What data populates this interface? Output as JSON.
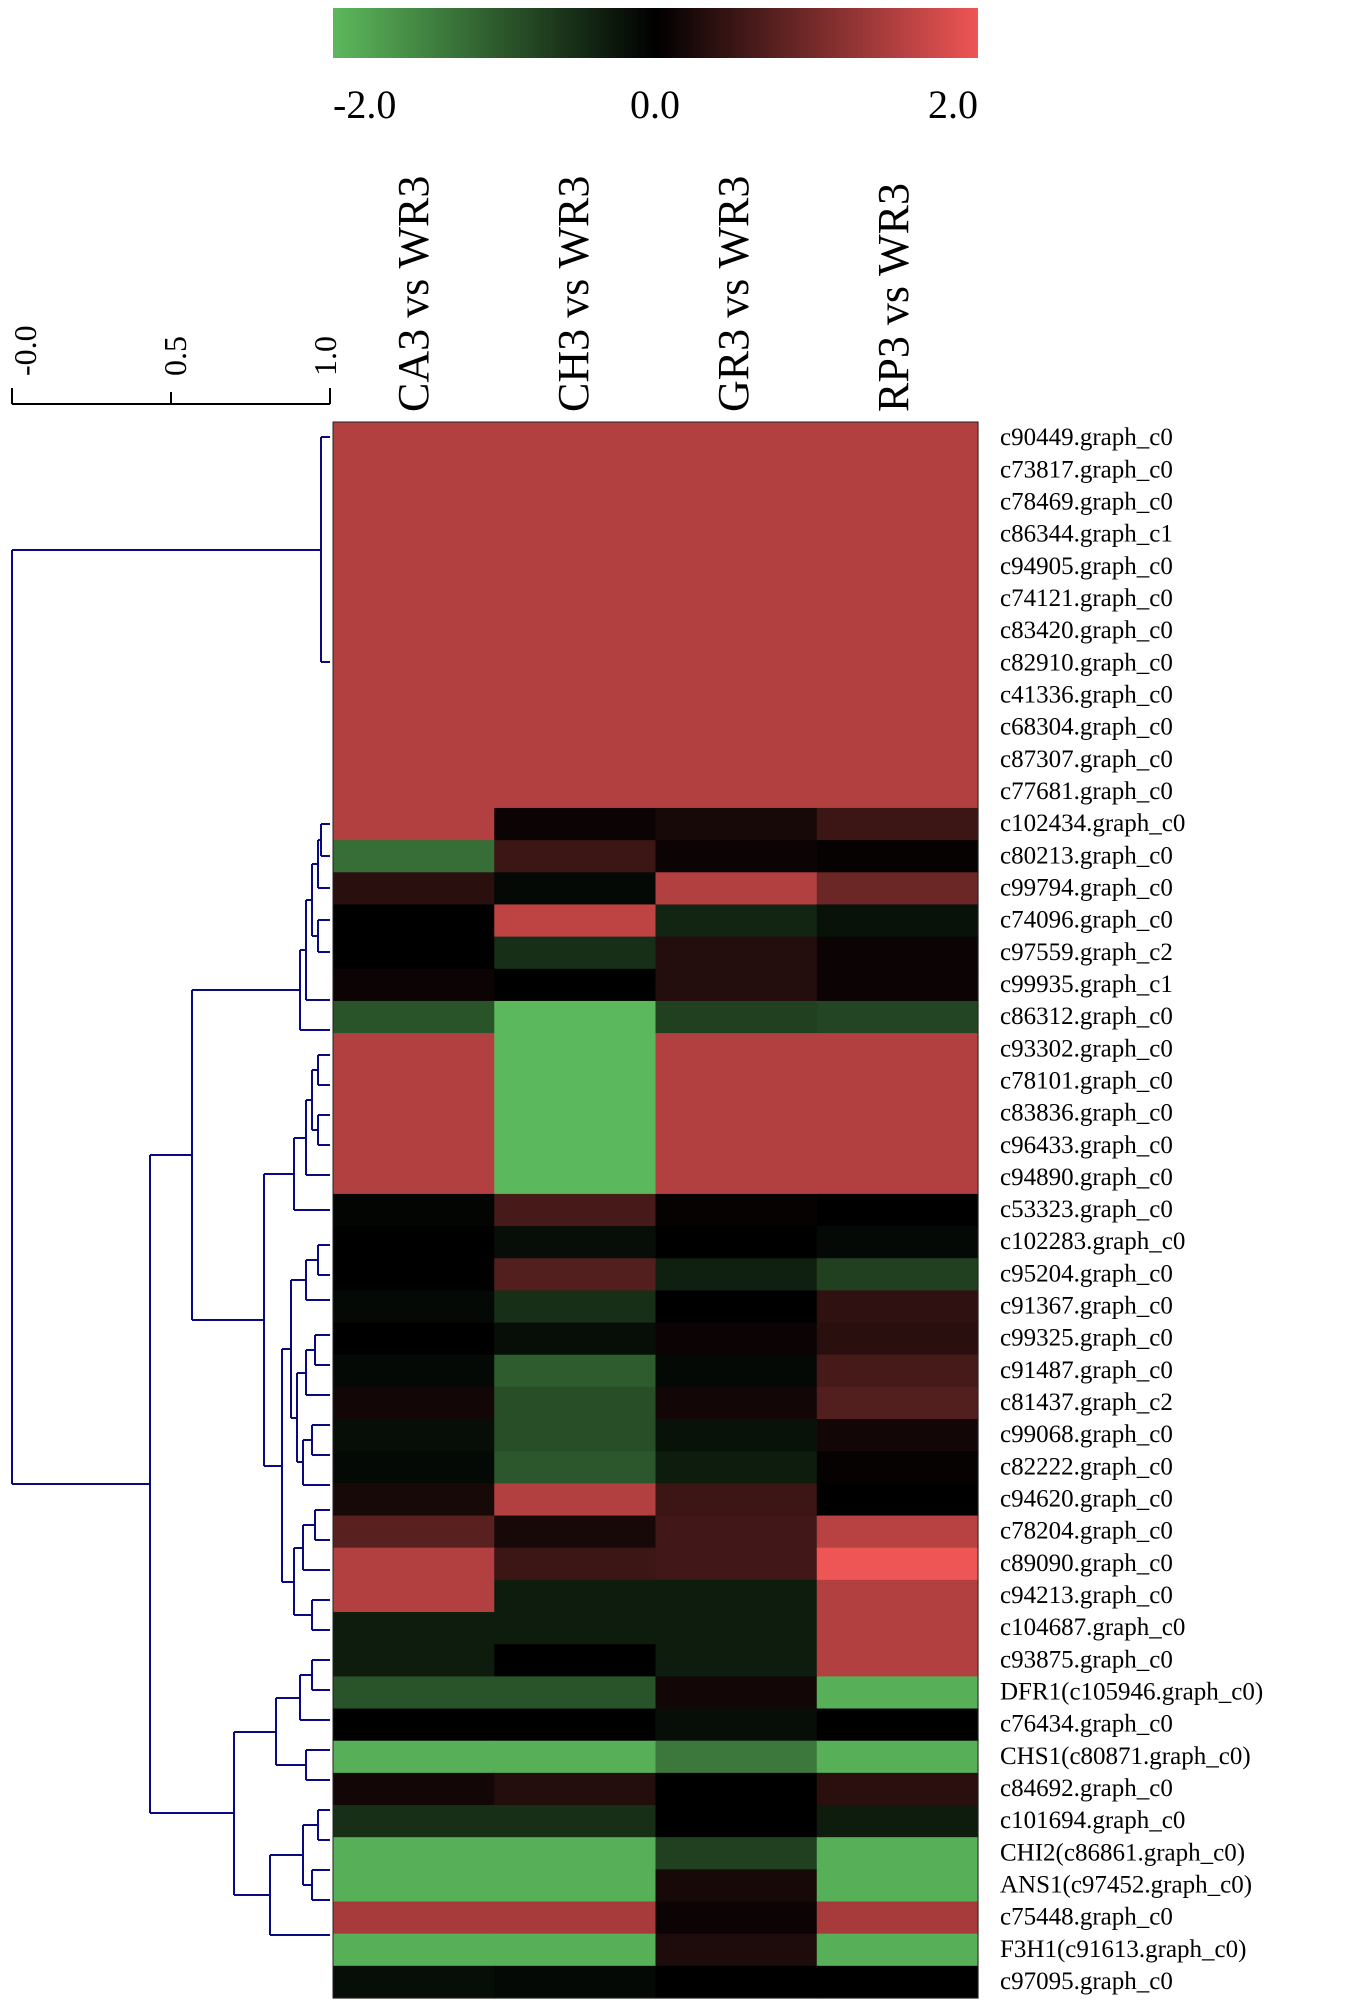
{
  "chart_data": {
    "type": "heatmap",
    "color_scale": {
      "min": -2.0,
      "mid": 0.0,
      "max": 2.0,
      "tick_labels": [
        "-2.0",
        "0.0",
        "2.0"
      ],
      "low_color": "#5cb85c",
      "mid_color": "#000000",
      "high_color": "#ee5555"
    },
    "dendrogram_axis": {
      "tick_labels": [
        "-0.0",
        "0.5",
        "1.0"
      ],
      "color": "#0a0a80"
    },
    "columns": [
      "CA3 vs WR3",
      "CH3 vs WR3",
      "GR3 vs WR3",
      "RP3 vs WR3"
    ],
    "rows": [
      "c90449.graph_c0",
      "c73817.graph_c0",
      "c78469.graph_c0",
      "c86344.graph_c1",
      "c94905.graph_c0",
      "c74121.graph_c0",
      "c83420.graph_c0",
      "c82910.graph_c0",
      "c41336.graph_c0",
      "c68304.graph_c0",
      "c87307.graph_c0",
      "c77681.graph_c0",
      "c102434.graph_c0",
      "c80213.graph_c0",
      "c99794.graph_c0",
      "c74096.graph_c0",
      "c97559.graph_c2",
      "c99935.graph_c1",
      "c86312.graph_c0",
      "c93302.graph_c0",
      "c78101.graph_c0",
      "c83836.graph_c0",
      "c96433.graph_c0",
      "c94890.graph_c0",
      "c53323.graph_c0",
      "c102283.graph_c0",
      "c95204.graph_c0",
      "c91367.graph_c0",
      "c99325.graph_c0",
      "c91487.graph_c0",
      "c81437.graph_c2",
      "c99068.graph_c0",
      "c82222.graph_c0",
      "c94620.graph_c0",
      "c78204.graph_c0",
      "c89090.graph_c0",
      "c94213.graph_c0",
      "c104687.graph_c0",
      "c93875.graph_c0",
      "DFR1(c105946.graph_c0)",
      "c76434.graph_c0",
      "CHS1(c80871.graph_c0)",
      "c84692.graph_c0",
      "c101694.graph_c0",
      "CHI2(c86861.graph_c0)",
      "ANS1(c97452.graph_c0)",
      "c75448.graph_c0",
      "F3H1(c91613.graph_c0)",
      "c97095.graph_c0"
    ],
    "values": [
      [
        1.5,
        1.5,
        1.5,
        1.5
      ],
      [
        1.5,
        1.5,
        1.5,
        1.5
      ],
      [
        1.5,
        1.5,
        1.5,
        1.5
      ],
      [
        1.5,
        1.5,
        1.5,
        1.5
      ],
      [
        1.5,
        1.5,
        1.5,
        1.5
      ],
      [
        1.5,
        1.5,
        1.5,
        1.5
      ],
      [
        1.5,
        1.5,
        1.5,
        1.5
      ],
      [
        1.5,
        1.5,
        1.5,
        1.5
      ],
      [
        1.5,
        1.5,
        1.5,
        1.5
      ],
      [
        1.5,
        1.5,
        1.5,
        1.5
      ],
      [
        1.5,
        1.5,
        1.5,
        1.5
      ],
      [
        1.5,
        1.5,
        1.5,
        1.5
      ],
      [
        1.5,
        0.1,
        0.2,
        0.5
      ],
      [
        -1.2,
        0.5,
        0.1,
        0.05
      ],
      [
        0.35,
        -0.1,
        1.5,
        0.9
      ],
      [
        0.0,
        1.6,
        -0.4,
        -0.2
      ],
      [
        0.0,
        -0.5,
        0.3,
        0.1
      ],
      [
        0.1,
        0.0,
        0.3,
        0.1
      ],
      [
        -0.9,
        -2.0,
        -0.7,
        -0.75
      ],
      [
        1.5,
        -2.0,
        1.5,
        1.5
      ],
      [
        1.5,
        -2.0,
        1.5,
        1.5
      ],
      [
        1.5,
        -2.0,
        1.5,
        1.5
      ],
      [
        1.5,
        -2.0,
        1.5,
        1.5
      ],
      [
        1.5,
        -2.0,
        1.5,
        1.5
      ],
      [
        -0.05,
        0.6,
        0.05,
        0.0
      ],
      [
        0.0,
        -0.15,
        0.0,
        -0.1
      ],
      [
        0.0,
        0.7,
        -0.35,
        -0.7
      ],
      [
        -0.1,
        -0.5,
        0.0,
        0.4
      ],
      [
        0.0,
        -0.15,
        0.1,
        0.35
      ],
      [
        -0.1,
        -1.0,
        -0.1,
        0.6
      ],
      [
        0.15,
        -0.85,
        0.15,
        0.7
      ],
      [
        -0.15,
        -0.85,
        -0.2,
        0.15
      ],
      [
        -0.1,
        -0.95,
        -0.3,
        0.05
      ],
      [
        0.2,
        1.5,
        0.5,
        0.0
      ],
      [
        0.75,
        0.2,
        0.55,
        1.55
      ],
      [
        1.5,
        0.5,
        0.55,
        2.0
      ],
      [
        1.5,
        -0.3,
        -0.3,
        1.5
      ],
      [
        -0.3,
        -0.3,
        -0.3,
        1.5
      ],
      [
        -0.3,
        0.0,
        -0.3,
        1.5
      ],
      [
        -0.9,
        -0.9,
        0.15,
        -1.9
      ],
      [
        0.0,
        0.0,
        -0.15,
        0.0
      ],
      [
        -1.9,
        -1.9,
        -1.3,
        -1.9
      ],
      [
        0.15,
        0.3,
        0.0,
        0.35
      ],
      [
        -0.5,
        -0.5,
        0.0,
        -0.3
      ],
      [
        -1.9,
        -1.9,
        -0.7,
        -1.9
      ],
      [
        -1.9,
        -1.9,
        0.2,
        -1.9
      ],
      [
        1.4,
        1.4,
        0.1,
        1.4
      ],
      [
        -1.9,
        -1.9,
        0.25,
        -1.9
      ],
      [
        -0.15,
        -0.1,
        0.0,
        0.0
      ]
    ]
  }
}
